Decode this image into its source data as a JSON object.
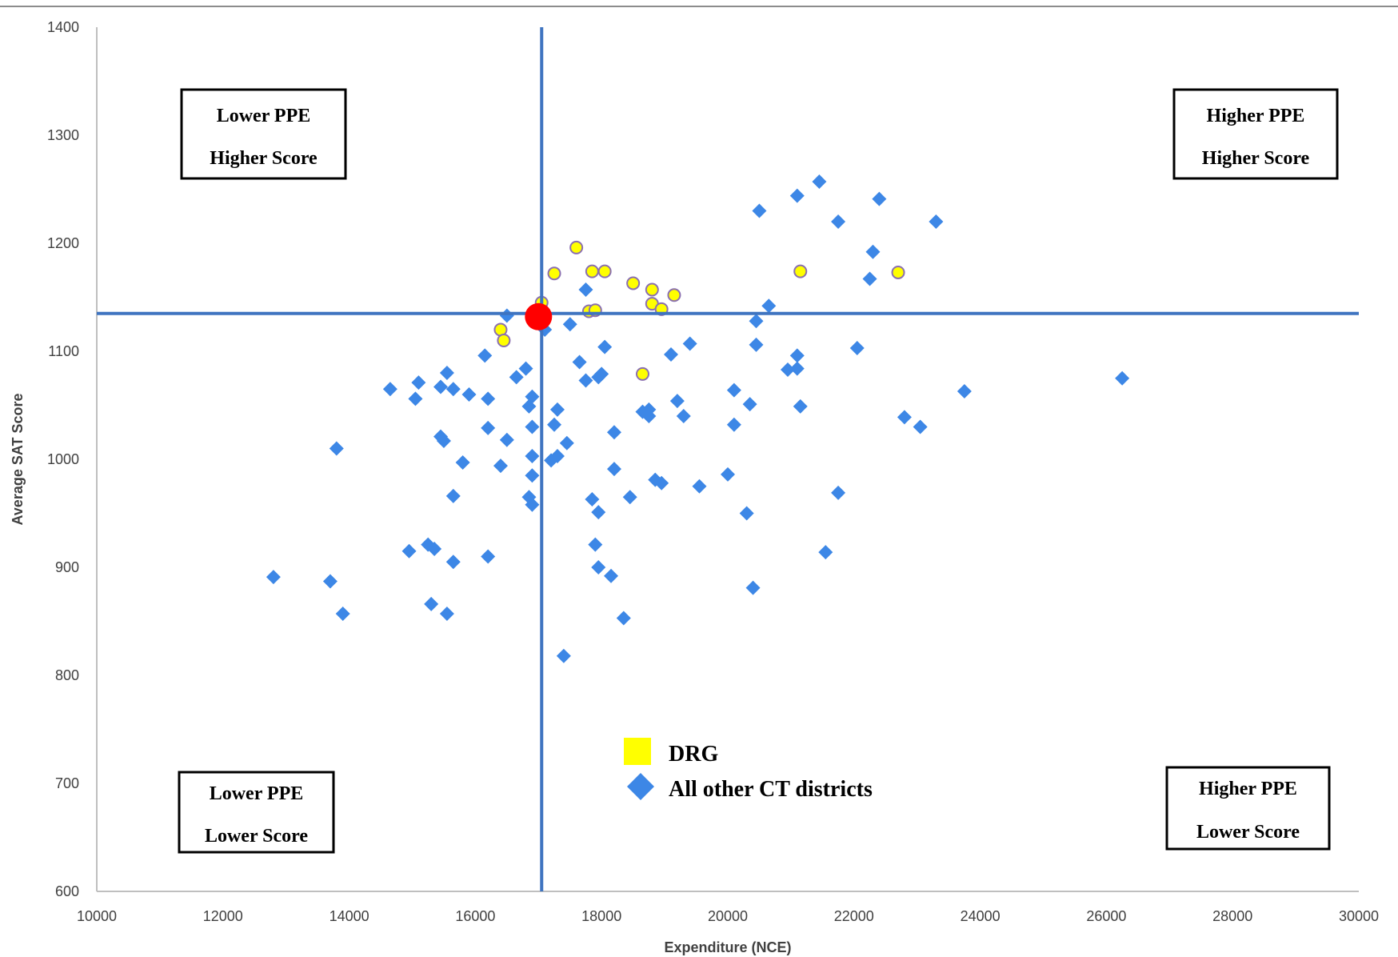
{
  "chart_data": {
    "type": "scatter",
    "xlabel": "Expenditure (NCE)",
    "ylabel": "Average SAT Score",
    "xlim": [
      10000,
      30000
    ],
    "ylim": [
      600,
      1400
    ],
    "x_ticks": [
      "10000",
      "12000",
      "14000",
      "16000",
      "18000",
      "20000",
      "22000",
      "24000",
      "26000",
      "28000",
      "30000"
    ],
    "y_ticks": [
      "600",
      "700",
      "800",
      "900",
      "1000",
      "1100",
      "1200",
      "1300",
      "1400"
    ],
    "grid": false,
    "reference_lines": {
      "x": 17050,
      "y": 1135
    },
    "highlight_point": {
      "x": 17000,
      "y": 1132,
      "color": "#ff0000"
    },
    "quadrant_labels": [
      {
        "position": "top-left",
        "line1": "Lower PPE",
        "line2": "Higher Score"
      },
      {
        "position": "top-right",
        "line1": "Higher PPE",
        "line2": "Higher Score"
      },
      {
        "position": "bottom-left",
        "line1": "Lower PPE",
        "line2": "Lower Score"
      },
      {
        "position": "bottom-right",
        "line1": "Higher PPE",
        "line2": "Lower Score"
      }
    ],
    "legend": {
      "placement": "bottom-center",
      "entries": [
        {
          "label": "DRG",
          "marker": "square",
          "color": "#ffff00"
        },
        {
          "label": "All other CT districts",
          "marker": "diamond",
          "color": "#3d87e6"
        }
      ]
    },
    "series": [
      {
        "name": "DRG",
        "color": "#ffff00",
        "stroke": "#8a6fb0",
        "marker": "circle",
        "points": [
          [
            17600,
            1196
          ],
          [
            17250,
            1172
          ],
          [
            17850,
            1174
          ],
          [
            18050,
            1174
          ],
          [
            18500,
            1163
          ],
          [
            18800,
            1157
          ],
          [
            19150,
            1152
          ],
          [
            18800,
            1144
          ],
          [
            18950,
            1139
          ],
          [
            17800,
            1137
          ],
          [
            17900,
            1138
          ],
          [
            17050,
            1145
          ],
          [
            16400,
            1120
          ],
          [
            16450,
            1110
          ],
          [
            18650,
            1079
          ],
          [
            21150,
            1174
          ],
          [
            22700,
            1173
          ]
        ]
      },
      {
        "name": "All other CT districts",
        "color": "#3d87e6",
        "marker": "diamond",
        "points": [
          [
            21450,
            1257
          ],
          [
            21100,
            1244
          ],
          [
            22400,
            1241
          ],
          [
            20500,
            1230
          ],
          [
            21750,
            1220
          ],
          [
            23300,
            1220
          ],
          [
            22300,
            1192
          ],
          [
            22250,
            1167
          ],
          [
            17750,
            1157
          ],
          [
            20650,
            1142
          ],
          [
            20450,
            1128
          ],
          [
            17500,
            1125
          ],
          [
            17100,
            1120
          ],
          [
            16500,
            1133
          ],
          [
            20450,
            1106
          ],
          [
            19400,
            1107
          ],
          [
            18050,
            1104
          ],
          [
            22050,
            1103
          ],
          [
            19100,
            1097
          ],
          [
            21100,
            1096
          ],
          [
            16150,
            1096
          ],
          [
            17650,
            1090
          ],
          [
            16800,
            1084
          ],
          [
            21100,
            1084
          ],
          [
            20950,
            1083
          ],
          [
            15550,
            1080
          ],
          [
            18000,
            1079
          ],
          [
            17950,
            1076
          ],
          [
            17750,
            1073
          ],
          [
            16650,
            1076
          ],
          [
            26250,
            1075
          ],
          [
            15100,
            1071
          ],
          [
            15450,
            1067
          ],
          [
            15650,
            1065
          ],
          [
            14650,
            1065
          ],
          [
            20100,
            1064
          ],
          [
            23750,
            1063
          ],
          [
            15900,
            1060
          ],
          [
            16900,
            1058
          ],
          [
            15050,
            1056
          ],
          [
            16200,
            1056
          ],
          [
            19200,
            1054
          ],
          [
            20350,
            1051
          ],
          [
            21150,
            1049
          ],
          [
            16850,
            1049
          ],
          [
            17300,
            1046
          ],
          [
            18750,
            1046
          ],
          [
            18650,
            1044
          ],
          [
            18750,
            1040
          ],
          [
            19300,
            1040
          ],
          [
            22800,
            1039
          ],
          [
            17250,
            1032
          ],
          [
            20100,
            1032
          ],
          [
            23050,
            1030
          ],
          [
            16200,
            1029
          ],
          [
            16900,
            1030
          ],
          [
            18200,
            1025
          ],
          [
            15450,
            1021
          ],
          [
            15500,
            1017
          ],
          [
            16500,
            1018
          ],
          [
            17450,
            1015
          ],
          [
            13800,
            1010
          ],
          [
            16900,
            1003
          ],
          [
            17300,
            1003
          ],
          [
            17200,
            999
          ],
          [
            15800,
            997
          ],
          [
            16400,
            994
          ],
          [
            18200,
            991
          ],
          [
            16900,
            985
          ],
          [
            20000,
            986
          ],
          [
            18850,
            981
          ],
          [
            18950,
            978
          ],
          [
            19550,
            975
          ],
          [
            21750,
            969
          ],
          [
            15650,
            966
          ],
          [
            16850,
            965
          ],
          [
            18450,
            965
          ],
          [
            17850,
            963
          ],
          [
            16900,
            958
          ],
          [
            17950,
            951
          ],
          [
            20300,
            950
          ],
          [
            15250,
            921
          ],
          [
            15350,
            917
          ],
          [
            14950,
            915
          ],
          [
            17900,
            921
          ],
          [
            21550,
            914
          ],
          [
            16200,
            910
          ],
          [
            15650,
            905
          ],
          [
            17950,
            900
          ],
          [
            18150,
            892
          ],
          [
            12800,
            891
          ],
          [
            13700,
            887
          ],
          [
            20400,
            881
          ],
          [
            15300,
            866
          ],
          [
            13900,
            857
          ],
          [
            15550,
            857
          ],
          [
            18350,
            853
          ],
          [
            17400,
            818
          ]
        ]
      }
    ]
  }
}
